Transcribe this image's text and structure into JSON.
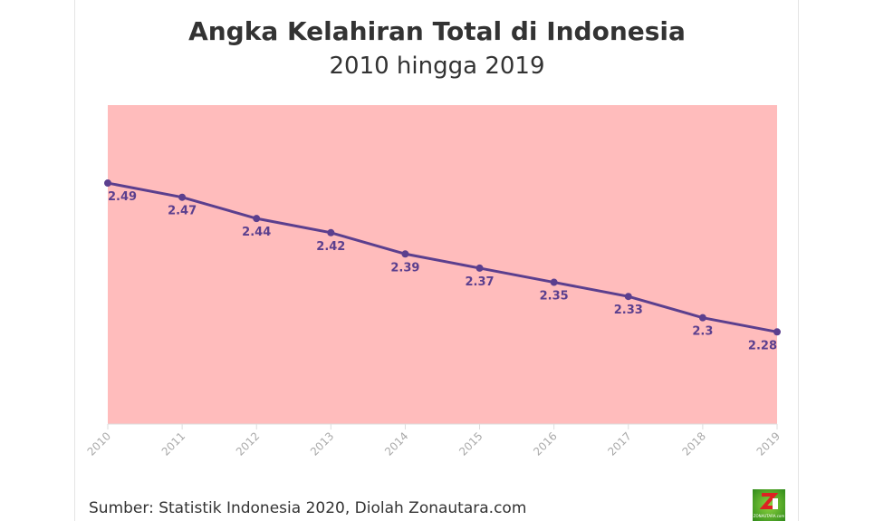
{
  "chart_data": {
    "type": "line",
    "title": "Angka Kelahiran Total di Indonesia",
    "subtitle": "2010 hingga 2019",
    "categories": [
      "2010",
      "2011",
      "2012",
      "2013",
      "2014",
      "2015",
      "2016",
      "2017",
      "2018",
      "2019"
    ],
    "series": [
      {
        "values": [
          2.49,
          2.47,
          2.44,
          2.42,
          2.39,
          2.37,
          2.35,
          2.33,
          2.3,
          2.28
        ]
      }
    ],
    "data_labels": [
      "2.49",
      "2.47",
      "2.44",
      "2.42",
      "2.39",
      "2.37",
      "2.35",
      "2.33",
      "2.3",
      "2.28"
    ],
    "ylim": [
      2.15,
      2.6
    ],
    "grid": false,
    "colors": {
      "line": "#5b3f8e",
      "plot_background": "#ffbcbc",
      "label": "#5b3f8e",
      "tick": "#aaaaaa"
    }
  },
  "source": "Sumber: Statistik Indonesia 2020, Diolah Zonautara.com",
  "logo_text": "ZONAUTARA.com"
}
